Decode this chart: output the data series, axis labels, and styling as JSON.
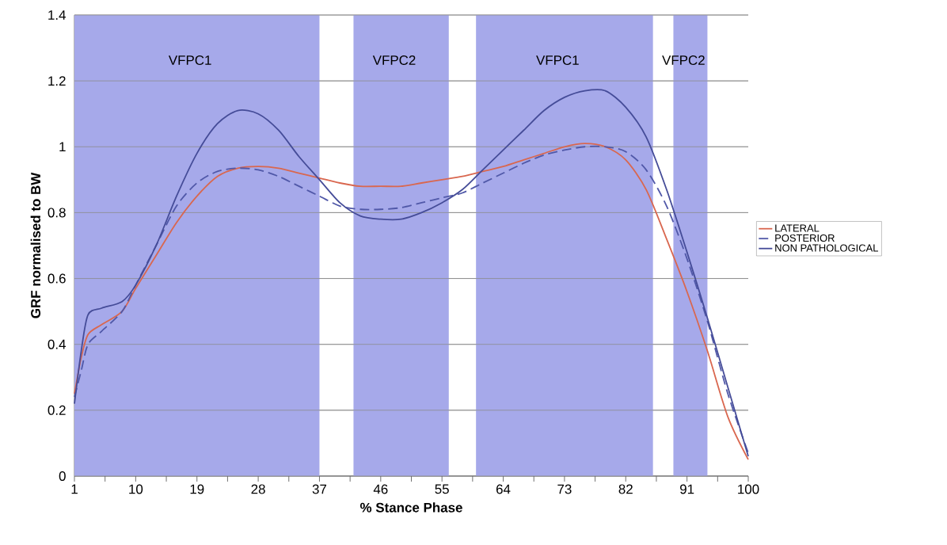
{
  "chart_data": {
    "type": "line",
    "xlabel": "% Stance Phase",
    "ylabel": "GRF normalised to BW",
    "x": [
      1,
      2,
      3,
      5,
      8,
      10,
      13,
      16,
      19,
      22,
      25,
      28,
      31,
      34,
      37,
      40,
      43,
      46,
      49,
      52,
      55,
      58,
      61,
      64,
      67,
      70,
      73,
      76,
      79,
      82,
      85,
      88,
      91,
      94,
      97,
      100
    ],
    "series": [
      {
        "name": "LATERAL",
        "color": "#d9674f",
        "line_style": "solid",
        "values": [
          0.25,
          0.36,
          0.43,
          0.46,
          0.5,
          0.57,
          0.67,
          0.77,
          0.85,
          0.91,
          0.935,
          0.94,
          0.935,
          0.92,
          0.905,
          0.89,
          0.88,
          0.88,
          0.88,
          0.89,
          0.9,
          0.91,
          0.925,
          0.94,
          0.96,
          0.98,
          1.0,
          1.01,
          1.0,
          0.96,
          0.87,
          0.72,
          0.56,
          0.38,
          0.18,
          0.05
        ]
      },
      {
        "name": "POSTERIOR",
        "color": "#5058a8",
        "line_style": "dashed",
        "values": [
          0.24,
          0.32,
          0.4,
          0.44,
          0.5,
          0.58,
          0.7,
          0.82,
          0.89,
          0.925,
          0.935,
          0.93,
          0.91,
          0.88,
          0.85,
          0.82,
          0.81,
          0.81,
          0.815,
          0.83,
          0.845,
          0.86,
          0.89,
          0.92,
          0.95,
          0.975,
          0.99,
          1.0,
          1.0,
          0.985,
          0.93,
          0.82,
          0.66,
          0.47,
          0.25,
          0.07
        ]
      },
      {
        "name": "NON PATHOLOGICAL",
        "color": "#454c98",
        "line_style": "solid",
        "values": [
          0.22,
          0.38,
          0.49,
          0.51,
          0.53,
          0.58,
          0.7,
          0.85,
          0.98,
          1.07,
          1.11,
          1.1,
          1.05,
          0.97,
          0.9,
          0.83,
          0.79,
          0.78,
          0.78,
          0.8,
          0.83,
          0.87,
          0.93,
          0.99,
          1.05,
          1.11,
          1.15,
          1.17,
          1.17,
          1.12,
          1.03,
          0.87,
          0.68,
          0.48,
          0.27,
          0.06
        ]
      }
    ],
    "xlim": [
      1,
      100
    ],
    "xticks": [
      1,
      {
        "value": 5.5,
        "label": null
      },
      10,
      {
        "value": 14.5,
        "label": null
      },
      19,
      {
        "value": 23.5,
        "label": null
      },
      28,
      {
        "value": 32.5,
        "label": null
      },
      37,
      {
        "value": 41.5,
        "label": null
      },
      46,
      {
        "value": 50.5,
        "label": null
      },
      55,
      {
        "value": 59.5,
        "label": null
      },
      64,
      {
        "value": 68.5,
        "label": null
      },
      73,
      {
        "value": 77.5,
        "label": null
      },
      82,
      {
        "value": 86.5,
        "label": null
      },
      91,
      {
        "value": 95.5,
        "label": null
      },
      100
    ],
    "ylim": [
      0,
      1.4
    ],
    "yticks": [
      0,
      0.2,
      0.4,
      0.6,
      0.8,
      1,
      1.2,
      1.4
    ],
    "bands": [
      {
        "axis": "x",
        "from": 1,
        "to": 37,
        "label": "VFPC1",
        "color": "#a6a9ea"
      },
      {
        "axis": "x",
        "from": 42,
        "to": 56,
        "label": "VFPC2",
        "color": "#a6a9ea"
      },
      {
        "axis": "x",
        "from": 60,
        "to": 86,
        "label": "VFPC1",
        "color": "#a6a9ea"
      },
      {
        "axis": "x",
        "from": 89,
        "to": 94,
        "label": "VFPC2",
        "color": "#a6a9ea"
      }
    ],
    "grid": "y",
    "legend": "right"
  }
}
